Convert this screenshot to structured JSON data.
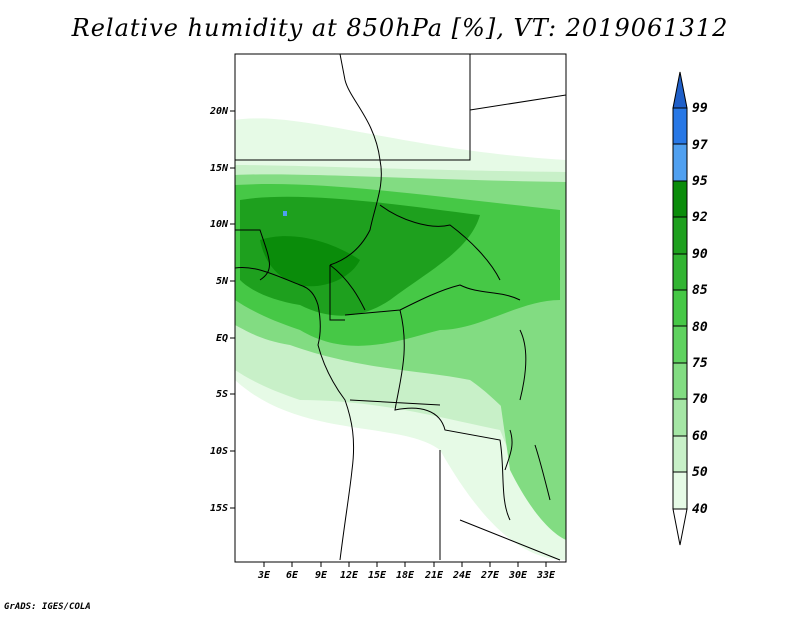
{
  "title": "Relative humidity at 850hPa [%], VT: 2019061312",
  "credit": "GrADS: IGES/COLA",
  "map": {
    "lat_labels": [
      "20N",
      "15N",
      "10N",
      "5N",
      "EQ",
      "5S",
      "10S",
      "15S"
    ],
    "lon_labels": [
      "3E",
      "6E",
      "9E",
      "12E",
      "15E",
      "18E",
      "21E",
      "24E",
      "27E",
      "30E",
      "33E"
    ]
  },
  "colorbar": {
    "levels": [
      "99",
      "97",
      "95",
      "92",
      "90",
      "85",
      "80",
      "75",
      "70",
      "60",
      "50",
      "40"
    ],
    "colors": [
      "#1f5fc8",
      "#2878e6",
      "#50a0f0",
      "#0a8c0a",
      "#1ea01e",
      "#32b432",
      "#46c846",
      "#5fd25f",
      "#82dc82",
      "#a5e6a5",
      "#c8f0c8",
      "#e6fae6"
    ]
  }
}
